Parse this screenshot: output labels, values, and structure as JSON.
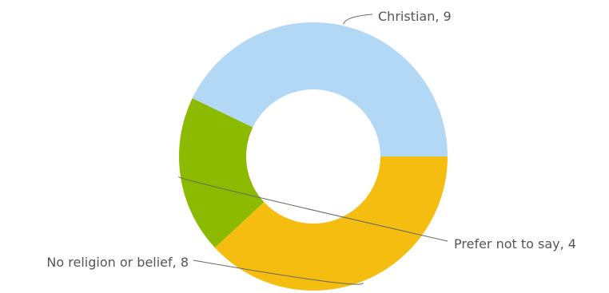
{
  "chart_data": {
    "type": "pie",
    "variant": "donut",
    "categories": [
      "Christian",
      "Prefer not to say",
      "No religion or belief"
    ],
    "values": [
      9,
      4,
      8
    ],
    "colors": [
      "#b3d8f5",
      "#8cba00",
      "#f5bd10"
    ],
    "labels": [
      "Christian, 9",
      "Prefer not to say, 4",
      "No religion or belief, 8"
    ],
    "legend": "none",
    "title": "",
    "grid": false
  }
}
